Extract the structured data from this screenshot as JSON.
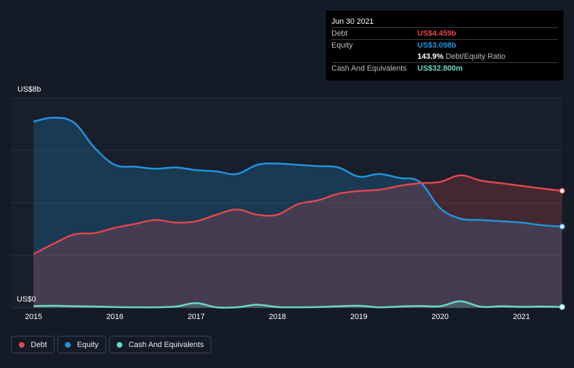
{
  "colors": {
    "debt": "#e0474f",
    "equity": "#2394df",
    "cash": "#6ad8c8",
    "grid": "#2b313c",
    "background": "#151b26"
  },
  "tooltip": {
    "date": "Jun 30 2021",
    "rows": [
      {
        "label": "Debt",
        "value": "US$4.459b",
        "color": "#e0474f"
      },
      {
        "label": "Equity",
        "value": "US$3.098b",
        "color": "#2394df"
      },
      {
        "label": "",
        "value": "143.9%",
        "sub": "Debt/Equity Ratio",
        "color": "#ffffff"
      },
      {
        "label": "Cash And Equivalents",
        "value": "US$32.800m",
        "color": "#6ad8c8"
      }
    ]
  },
  "legend": [
    {
      "label": "Debt",
      "color": "#e0474f"
    },
    {
      "label": "Equity",
      "color": "#2394df"
    },
    {
      "label": "Cash And Equivalents",
      "color": "#6ad8c8"
    }
  ],
  "chart_data": {
    "type": "area",
    "title": "",
    "xlabel": "",
    "ylabel": "",
    "y_top_label": "US$8b",
    "y_bottom_label": "US$0",
    "ylim": [
      0,
      8
    ],
    "xlim": [
      2015.0,
      2021.5
    ],
    "x_ticks": [
      "2015",
      "2016",
      "2017",
      "2018",
      "2019",
      "2020",
      "2021"
    ],
    "grid": true,
    "legend_position": "bottom-left",
    "units": "US$ billions",
    "series": [
      {
        "name": "Debt",
        "color": "#e0474f",
        "points": [
          [
            2015.0,
            2.05
          ],
          [
            2015.25,
            2.45
          ],
          [
            2015.5,
            2.8
          ],
          [
            2015.75,
            2.85
          ],
          [
            2016.0,
            3.05
          ],
          [
            2016.25,
            3.2
          ],
          [
            2016.5,
            3.35
          ],
          [
            2016.75,
            3.25
          ],
          [
            2017.0,
            3.3
          ],
          [
            2017.25,
            3.55
          ],
          [
            2017.5,
            3.75
          ],
          [
            2017.75,
            3.55
          ],
          [
            2018.0,
            3.55
          ],
          [
            2018.25,
            3.95
          ],
          [
            2018.5,
            4.1
          ],
          [
            2018.75,
            4.35
          ],
          [
            2019.0,
            4.45
          ],
          [
            2019.25,
            4.5
          ],
          [
            2019.5,
            4.65
          ],
          [
            2019.75,
            4.75
          ],
          [
            2020.0,
            4.8
          ],
          [
            2020.25,
            5.05
          ],
          [
            2020.5,
            4.85
          ],
          [
            2020.75,
            4.75
          ],
          [
            2021.0,
            4.65
          ],
          [
            2021.25,
            4.55
          ],
          [
            2021.5,
            4.459
          ]
        ]
      },
      {
        "name": "Equity",
        "color": "#2394df",
        "points": [
          [
            2015.0,
            7.1
          ],
          [
            2015.25,
            7.25
          ],
          [
            2015.5,
            7.05
          ],
          [
            2015.75,
            6.1
          ],
          [
            2016.0,
            5.45
          ],
          [
            2016.25,
            5.38
          ],
          [
            2016.5,
            5.3
          ],
          [
            2016.75,
            5.35
          ],
          [
            2017.0,
            5.25
          ],
          [
            2017.25,
            5.2
          ],
          [
            2017.5,
            5.1
          ],
          [
            2017.75,
            5.45
          ],
          [
            2018.0,
            5.5
          ],
          [
            2018.25,
            5.45
          ],
          [
            2018.5,
            5.4
          ],
          [
            2018.75,
            5.35
          ],
          [
            2019.0,
            5.0
          ],
          [
            2019.25,
            5.1
          ],
          [
            2019.5,
            4.95
          ],
          [
            2019.75,
            4.8
          ],
          [
            2020.0,
            3.8
          ],
          [
            2020.25,
            3.4
          ],
          [
            2020.5,
            3.35
          ],
          [
            2020.75,
            3.3
          ],
          [
            2021.0,
            3.25
          ],
          [
            2021.25,
            3.15
          ],
          [
            2021.5,
            3.098
          ]
        ]
      },
      {
        "name": "Cash And Equivalents",
        "color": "#6ad8c8",
        "points": [
          [
            2015.0,
            0.07
          ],
          [
            2015.25,
            0.08
          ],
          [
            2015.5,
            0.06
          ],
          [
            2015.75,
            0.05
          ],
          [
            2016.0,
            0.03
          ],
          [
            2016.25,
            0.02
          ],
          [
            2016.5,
            0.02
          ],
          [
            2016.75,
            0.05
          ],
          [
            2017.0,
            0.18
          ],
          [
            2017.25,
            0.02
          ],
          [
            2017.5,
            0.02
          ],
          [
            2017.75,
            0.12
          ],
          [
            2018.0,
            0.03
          ],
          [
            2018.25,
            0.02
          ],
          [
            2018.5,
            0.03
          ],
          [
            2018.75,
            0.06
          ],
          [
            2019.0,
            0.08
          ],
          [
            2019.25,
            0.02
          ],
          [
            2019.5,
            0.05
          ],
          [
            2019.75,
            0.07
          ],
          [
            2020.0,
            0.06
          ],
          [
            2020.25,
            0.25
          ],
          [
            2020.5,
            0.04
          ],
          [
            2020.75,
            0.06
          ],
          [
            2021.0,
            0.04
          ],
          [
            2021.25,
            0.05
          ],
          [
            2021.5,
            0.0328
          ]
        ]
      }
    ]
  }
}
